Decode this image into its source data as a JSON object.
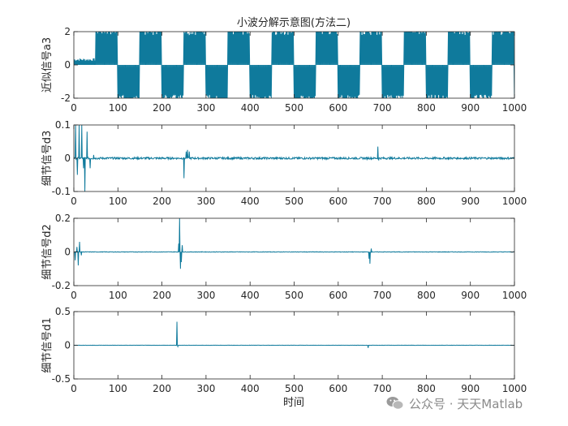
{
  "figure": {
    "title": "小波分解示意图(方法二)",
    "xlabel": "时间",
    "watermark": "公众号 · 天天Matlab",
    "line_color": "#0f7a9c",
    "axes_color": "#262626"
  },
  "chart_data": [
    {
      "type": "line",
      "ylabel": "近似信号a3",
      "xlim": [
        0,
        1000
      ],
      "ylim": [
        -2,
        2
      ],
      "xticks": [
        0,
        100,
        200,
        300,
        400,
        500,
        600,
        700,
        800,
        900,
        1000
      ],
      "yticks": [
        -2,
        0,
        2
      ],
      "grid": false,
      "signal": {
        "kind": "square_bursts",
        "period": 100,
        "x_start": 0,
        "x_end": 1000,
        "amp_pos": 2.0,
        "amp_neg": -2.0,
        "initial_small_amp": 0.4,
        "initial_small_until": 50
      }
    },
    {
      "type": "line",
      "ylabel": "细节信号d3",
      "xlim": [
        0,
        1000
      ],
      "ylim": [
        -0.1,
        0.1
      ],
      "xticks": [
        0,
        100,
        200,
        300,
        400,
        500,
        600,
        700,
        800,
        900,
        1000
      ],
      "yticks": [
        -0.1,
        0,
        0.1
      ],
      "grid": false,
      "spikes": [
        {
          "x": 4,
          "y": 0.1
        },
        {
          "x": 8,
          "y": -0.05
        },
        {
          "x": 12,
          "y": 0.1
        },
        {
          "x": 18,
          "y": 0.1
        },
        {
          "x": 22,
          "y": -0.03
        },
        {
          "x": 25,
          "y": -0.1
        },
        {
          "x": 30,
          "y": 0.08
        },
        {
          "x": 37,
          "y": -0.03
        },
        {
          "x": 45,
          "y": 0.01
        },
        {
          "x": 250,
          "y": -0.06
        },
        {
          "x": 255,
          "y": 0.02
        },
        {
          "x": 258,
          "y": 0.025
        },
        {
          "x": 262,
          "y": 0.02
        },
        {
          "x": 690,
          "y": 0.035
        },
        {
          "x": 692,
          "y": -0.005
        }
      ],
      "noise": 0.003
    },
    {
      "type": "line",
      "ylabel": "细节信号d2",
      "xlim": [
        0,
        1000
      ],
      "ylim": [
        -0.2,
        0.2
      ],
      "xticks": [
        0,
        100,
        200,
        300,
        400,
        500,
        600,
        700,
        800,
        900,
        1000
      ],
      "yticks": [
        -0.2,
        0,
        0.2
      ],
      "grid": false,
      "spikes": [
        {
          "x": 3,
          "y": -0.05
        },
        {
          "x": 7,
          "y": 0.03
        },
        {
          "x": 10,
          "y": -0.08
        },
        {
          "x": 13,
          "y": 0.06
        },
        {
          "x": 17,
          "y": -0.02
        },
        {
          "x": 238,
          "y": 0.05
        },
        {
          "x": 240,
          "y": 0.2
        },
        {
          "x": 242,
          "y": -0.1
        },
        {
          "x": 244,
          "y": -0.06
        },
        {
          "x": 246,
          "y": 0.04
        },
        {
          "x": 670,
          "y": -0.04
        },
        {
          "x": 672,
          "y": -0.07
        },
        {
          "x": 675,
          "y": 0.02
        }
      ],
      "noise": 0.0015
    },
    {
      "type": "line",
      "ylabel": "细节信号d1",
      "xlim": [
        0,
        1000
      ],
      "ylim": [
        -0.5,
        0.5
      ],
      "xticks": [
        0,
        100,
        200,
        300,
        400,
        500,
        600,
        700,
        800,
        900,
        1000
      ],
      "yticks": [
        -0.5,
        0,
        0.5
      ],
      "grid": false,
      "spikes": [
        {
          "x": 234,
          "y": 0.35
        },
        {
          "x": 236,
          "y": -0.02
        },
        {
          "x": 668,
          "y": -0.04
        }
      ],
      "noise": 0.002
    }
  ]
}
